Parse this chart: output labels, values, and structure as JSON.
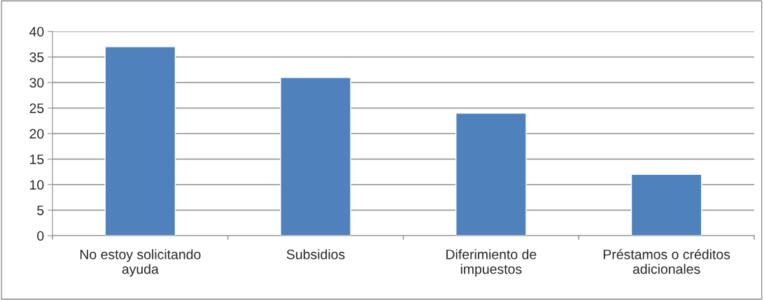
{
  "chart_data": {
    "type": "bar",
    "categories": [
      "No estoy solicitando ayuda",
      "Subsidios",
      "Diferimiento de impuestos",
      "Préstamos o créditos adicionales"
    ],
    "values": [
      37,
      31,
      24,
      12
    ],
    "color": "#4f81bd",
    "ylim": [
      0,
      40
    ],
    "yticks": [
      0,
      5,
      10,
      15,
      20,
      25,
      30,
      35,
      40
    ],
    "grid": "y"
  }
}
